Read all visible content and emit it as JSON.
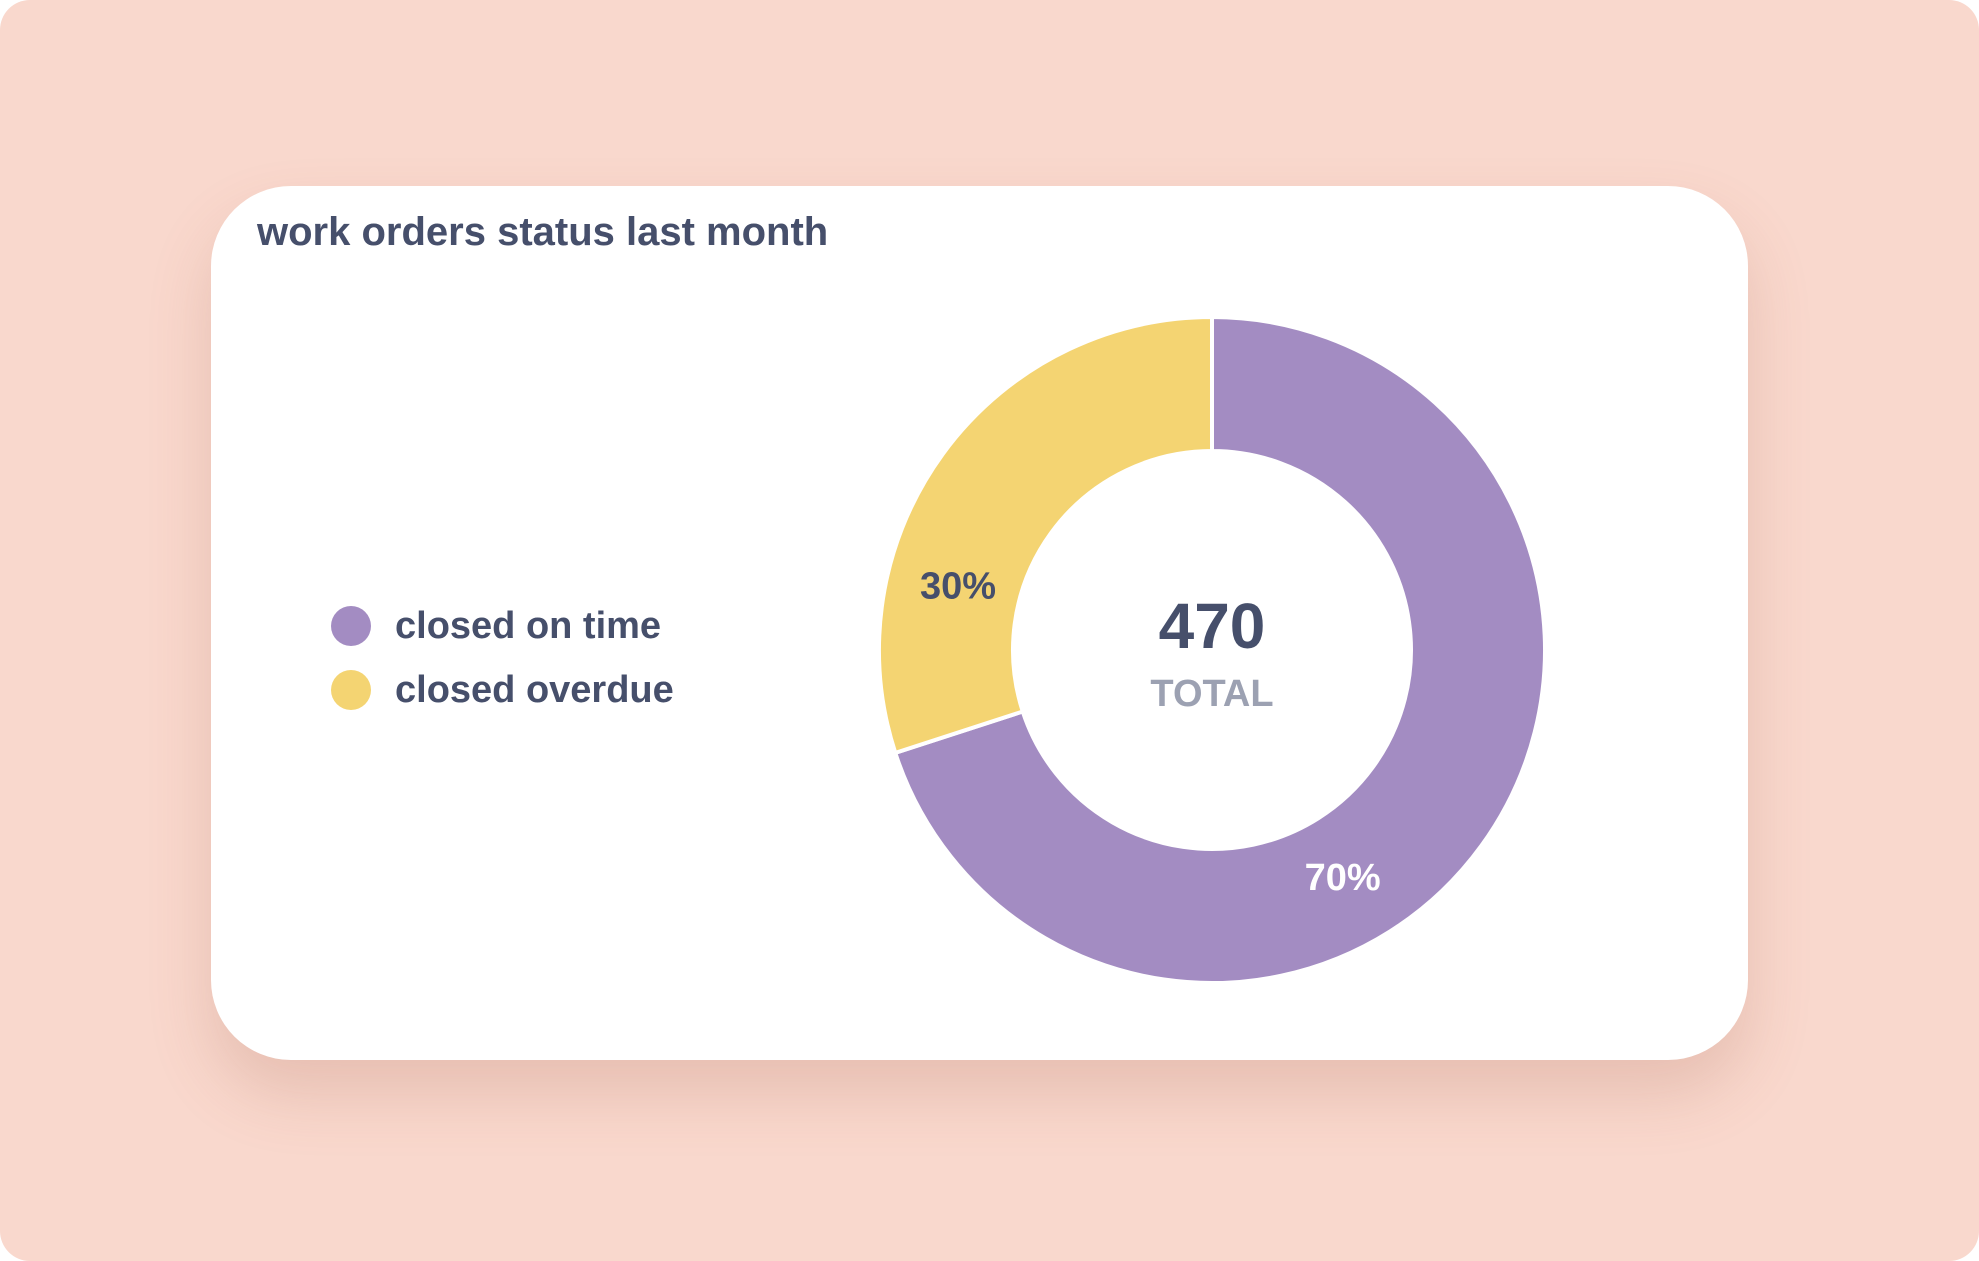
{
  "card": {
    "title": "work orders status last month"
  },
  "colors": {
    "background": "#f9d8cd",
    "card": "#ffffff",
    "text": "#464f6b",
    "muted_text": "#9ca1b2"
  },
  "chart_data": {
    "type": "pie",
    "title": "work orders status last month",
    "donut": true,
    "legend_position": "left",
    "center_value": "470",
    "center_caption": "TOTAL",
    "slices": [
      {
        "name": "closed on time",
        "value": 70,
        "label": "70%",
        "color": "#a38cc2",
        "label_color": "#ffffff"
      },
      {
        "name": "closed overdue",
        "value": 30,
        "label": "30%",
        "color": "#f4d472",
        "label_color": "#464f6b"
      }
    ]
  }
}
